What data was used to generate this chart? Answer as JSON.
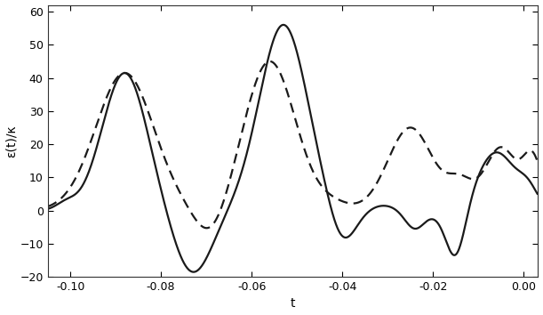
{
  "xlim": [
    -0.105,
    0.003
  ],
  "ylim": [
    -20,
    62
  ],
  "xlabel": "t",
  "ylabel": "ε(t)/κ",
  "xticks": [
    -0.1,
    -0.08,
    -0.06,
    -0.04,
    -0.02,
    0.0
  ],
  "yticks": [
    -20,
    -10,
    0,
    10,
    20,
    30,
    40,
    50,
    60
  ],
  "line_color": "#1a1a1a",
  "background_color": "#ffffff",
  "linewidth": 1.6,
  "solid_gaussians": [
    {
      "amp": 2.0,
      "mu": -0.101,
      "sig": 0.003
    },
    {
      "amp": 41.5,
      "mu": -0.088,
      "sig": 0.007
    },
    {
      "amp": -19.0,
      "mu": -0.073,
      "sig": 0.006
    },
    {
      "amp": 56.0,
      "mu": -0.053,
      "sig": 0.0075
    },
    {
      "amp": -10.5,
      "mu": -0.04,
      "sig": 0.004
    },
    {
      "amp": 1.5,
      "mu": -0.031,
      "sig": 0.004
    },
    {
      "amp": -5.5,
      "mu": -0.024,
      "sig": 0.003
    },
    {
      "amp": -1.0,
      "mu": -0.019,
      "sig": 0.003
    },
    {
      "amp": -15.0,
      "mu": -0.015,
      "sig": 0.003
    },
    {
      "amp": 17.5,
      "mu": -0.006,
      "sig": 0.006
    },
    {
      "amp": 5.0,
      "mu": 0.001,
      "sig": 0.003
    }
  ],
  "dashed_gaussians": [
    {
      "amp": 41.5,
      "mu": -0.088,
      "sig": 0.009
    },
    {
      "amp": -8.5,
      "mu": -0.069,
      "sig": 0.005
    },
    {
      "amp": 45.0,
      "mu": -0.056,
      "sig": 0.008
    },
    {
      "amp": 2.0,
      "mu": -0.042,
      "sig": 0.005
    },
    {
      "amp": 25.0,
      "mu": -0.025,
      "sig": 0.007
    },
    {
      "amp": 8.0,
      "mu": -0.014,
      "sig": 0.004
    },
    {
      "amp": 19.0,
      "mu": -0.005,
      "sig": 0.005
    },
    {
      "amp": 15.0,
      "mu": 0.002,
      "sig": 0.003
    }
  ]
}
